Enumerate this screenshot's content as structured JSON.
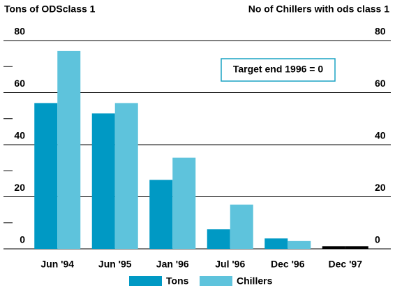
{
  "chart_data": {
    "type": "bar",
    "y_label": "Tons of ODSclass 1",
    "y2_label": "No of Chillers with ods class 1",
    "annotation": "Target end 1996 = 0",
    "categories": [
      "Jun '94",
      "Jun '95",
      "Jan '96",
      "Jul '96",
      "Dec '96",
      "Dec '97"
    ],
    "series": [
      {
        "name": "Tons",
        "color": "#0099c4",
        "values": [
          56,
          52,
          26.5,
          7.5,
          4,
          1
        ],
        "point_colors": [
          null,
          null,
          null,
          null,
          null,
          "#000000"
        ]
      },
      {
        "name": "Chillers",
        "color": "#5ec3dc",
        "values": [
          76,
          56,
          35,
          17,
          3,
          1
        ],
        "axis": "y2",
        "point_colors": [
          null,
          null,
          null,
          null,
          null,
          "#000000"
        ]
      }
    ],
    "ylim": [
      0,
      80
    ],
    "yticks": [
      0,
      20,
      40,
      60,
      80
    ],
    "yminor": [
      10,
      30,
      50,
      70
    ],
    "y2lim": [
      0,
      80
    ],
    "y2ticks": [
      0,
      20,
      40,
      60,
      80
    ],
    "grid": true,
    "legend": "bottom"
  }
}
